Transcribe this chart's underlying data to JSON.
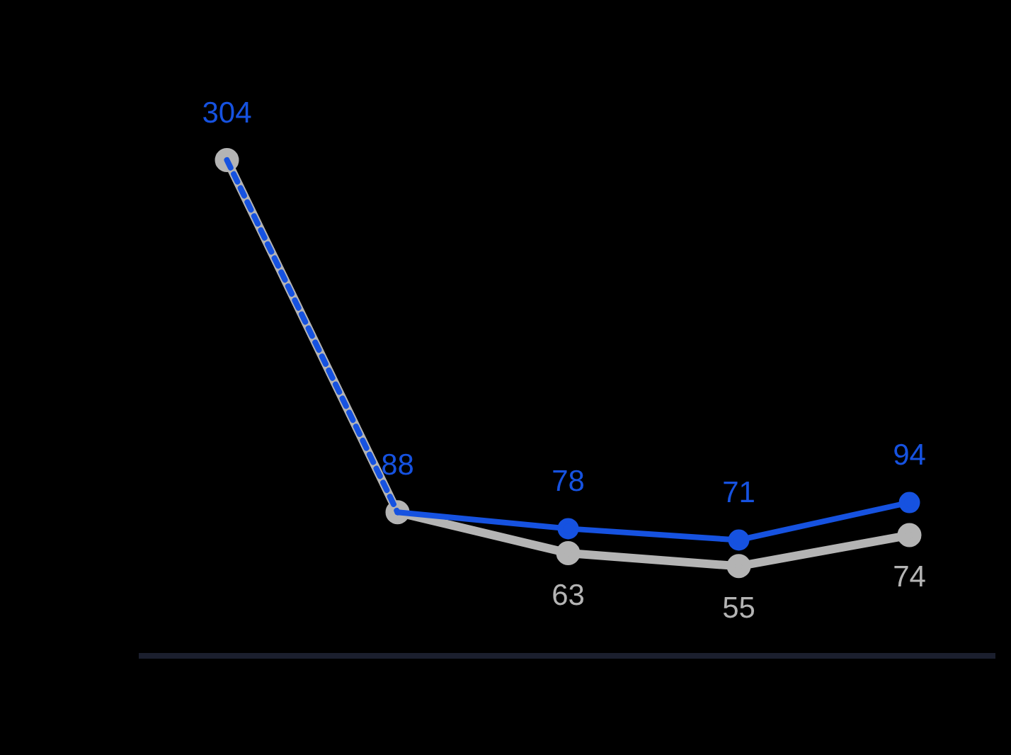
{
  "chart_data": {
    "type": "line",
    "categories": [
      null,
      null,
      null,
      null,
      null
    ],
    "series": [
      {
        "color": "#1652e0",
        "values": [
          304,
          88,
          78,
          71,
          94
        ],
        "value_labels": [
          "304",
          "88",
          "78",
          "71",
          "94"
        ]
      },
      {
        "color": "#b4b4b4",
        "values": [
          304,
          88,
          63,
          55,
          74
        ],
        "value_labels": [
          null,
          null,
          "63",
          "55",
          "74"
        ]
      }
    ],
    "marker": "circle",
    "grid": false,
    "legend": false,
    "tick_labels": false
  }
}
